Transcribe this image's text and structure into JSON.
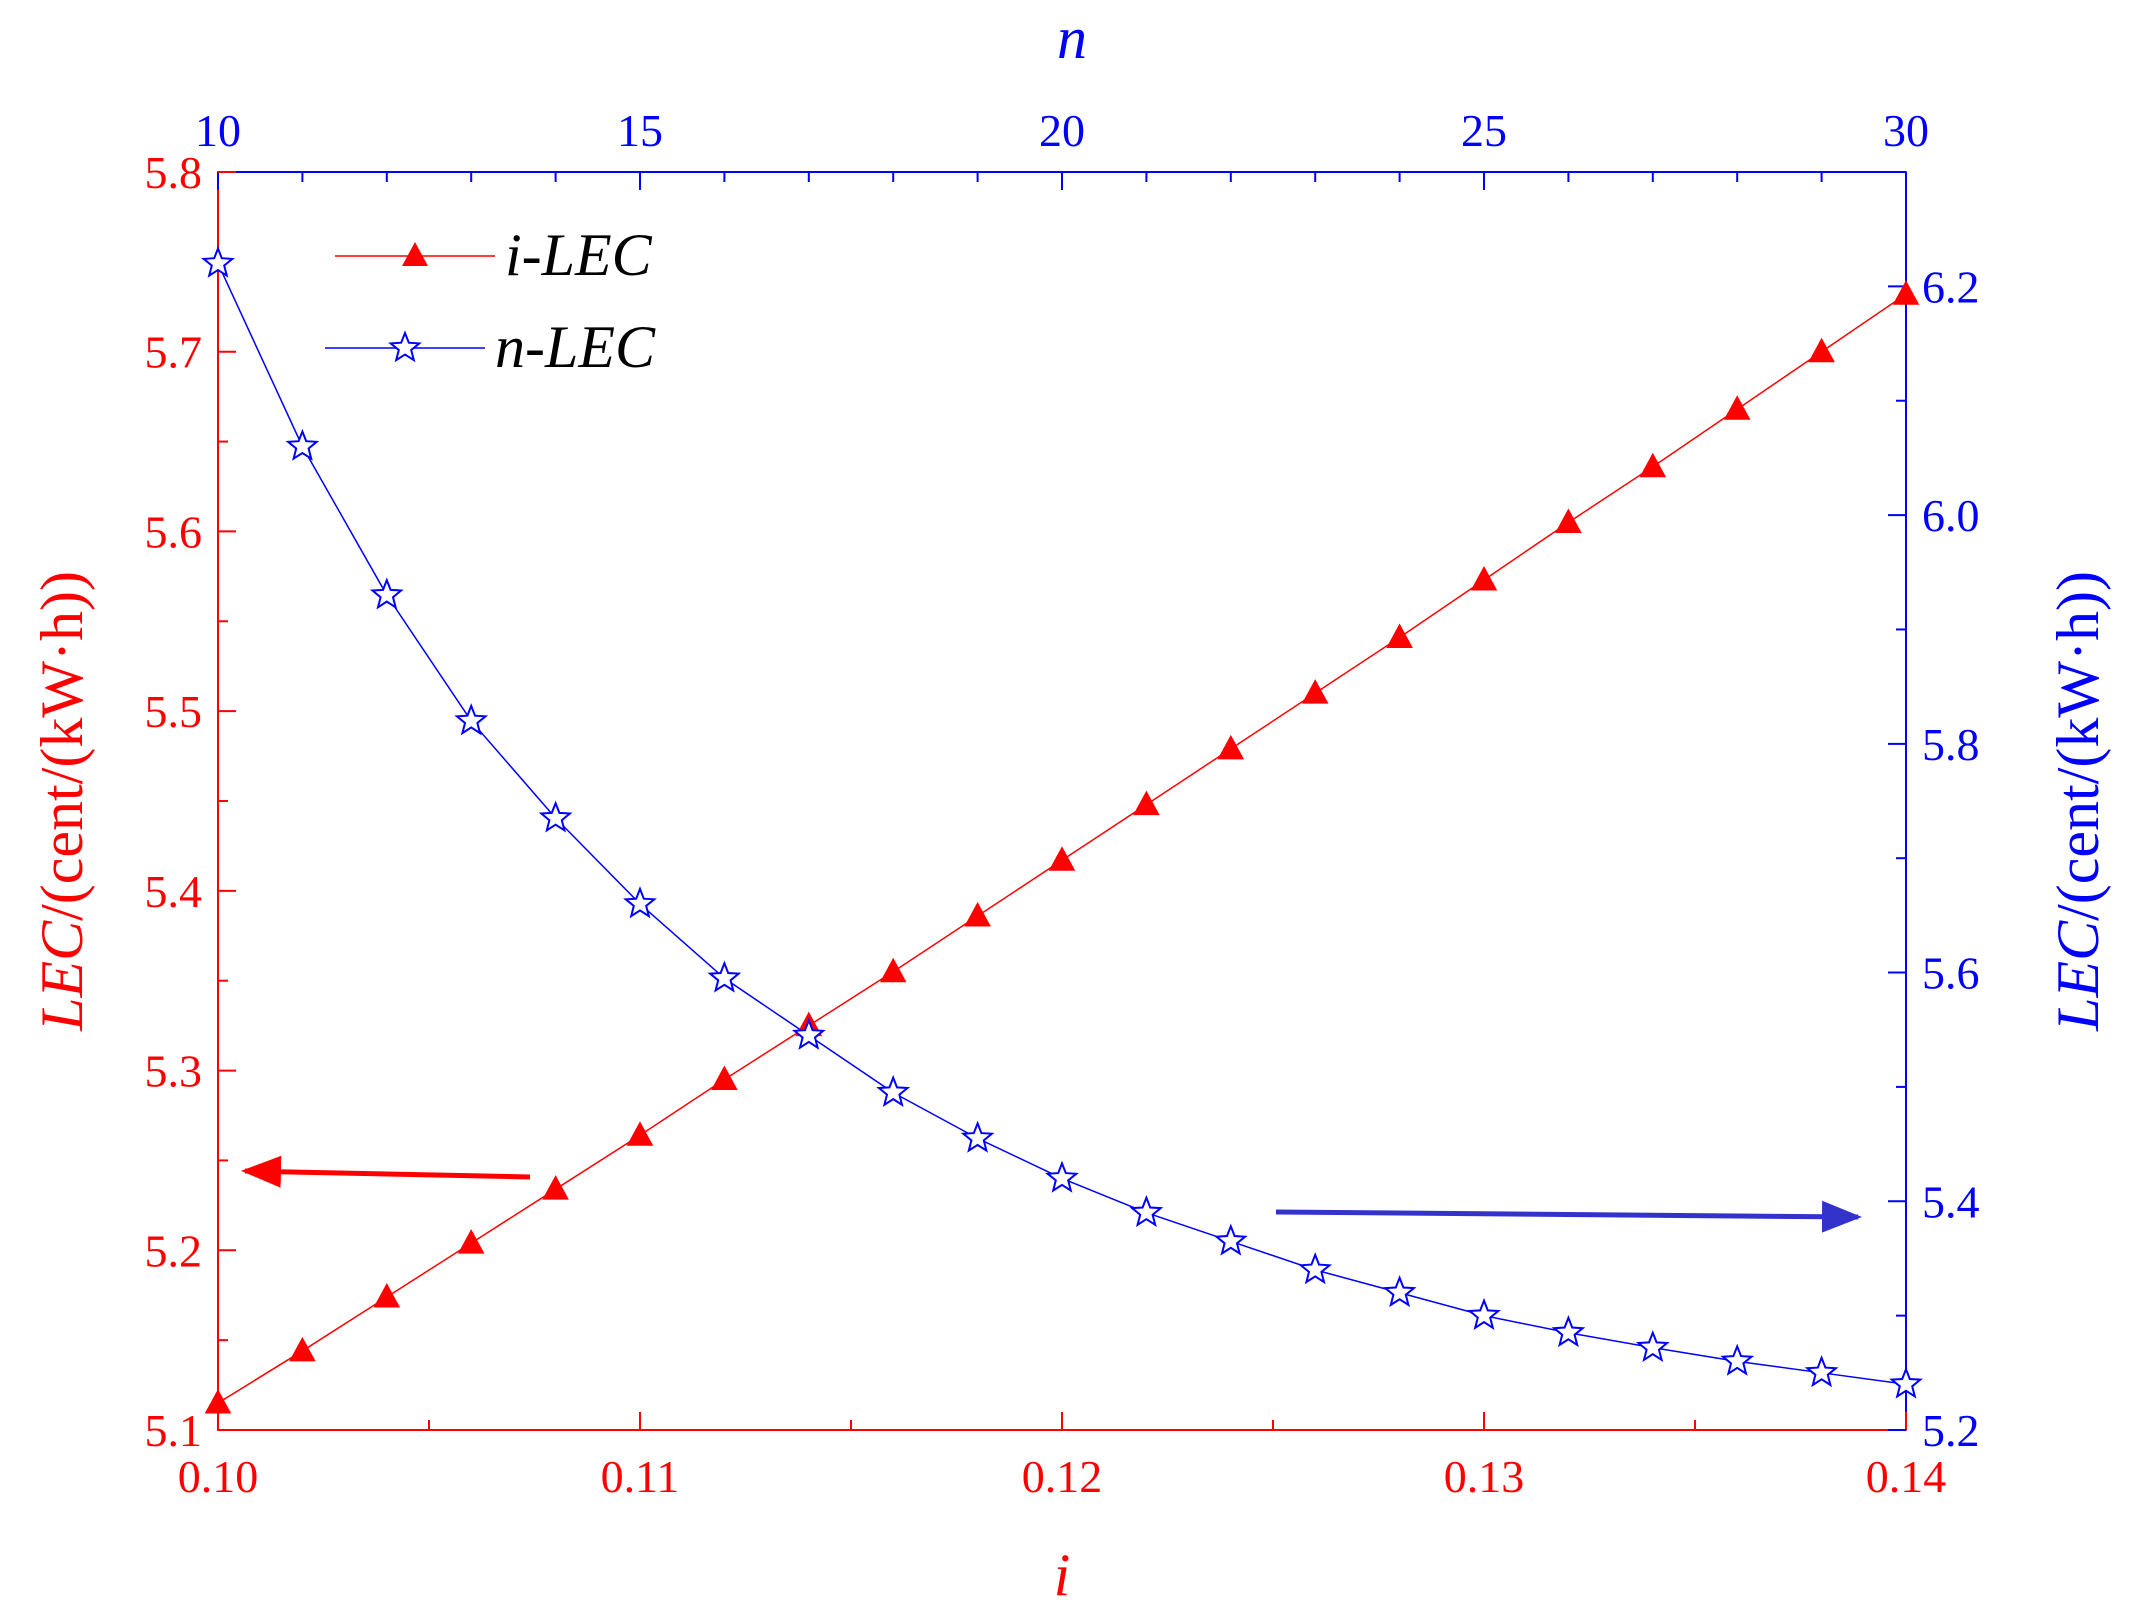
{
  "chart_data": {
    "type": "line",
    "x_bottom": {
      "label": "i",
      "range": [
        0.1,
        0.14
      ],
      "ticks": [
        "0.10",
        "0.11",
        "0.12",
        "0.13",
        "0.14"
      ],
      "color": "#ff0000"
    },
    "x_top": {
      "label": "n",
      "range": [
        10,
        30
      ],
      "ticks": [
        "10",
        "15",
        "20",
        "25",
        "30"
      ],
      "color": "#0000ff"
    },
    "y_left": {
      "label_italic": "LEC",
      "label_rest": "/(cent/(kW·h))",
      "range": [
        5.1,
        5.8
      ],
      "ticks": [
        "5.1",
        "5.2",
        "5.3",
        "5.4",
        "5.5",
        "5.6",
        "5.7",
        "5.8"
      ],
      "color": "#ff0000"
    },
    "y_right": {
      "label_italic": "LEC",
      "label_rest": "/(cent/(kW·h))",
      "range": [
        5.2,
        6.3
      ],
      "ticks": [
        "5.2",
        "5.4",
        "5.6",
        "5.8",
        "6.0",
        "6.2"
      ],
      "color": "#0000ff"
    },
    "legend_position": "top-left",
    "series": [
      {
        "name": "i-LEC",
        "axis": "bottom-left",
        "color": "#ff0000",
        "marker": "filled-triangle",
        "x": [
          0.1,
          0.102,
          0.104,
          0.106,
          0.108,
          0.11,
          0.112,
          0.114,
          0.116,
          0.118,
          0.12,
          0.122,
          0.124,
          0.126,
          0.128,
          0.13,
          0.132,
          0.134,
          0.136,
          0.138,
          0.14
        ],
        "y": [
          5.115,
          5.144,
          5.174,
          5.204,
          5.234,
          5.264,
          5.295,
          5.325,
          5.355,
          5.386,
          5.417,
          5.448,
          5.479,
          5.51,
          5.541,
          5.573,
          5.605,
          5.636,
          5.668,
          5.7,
          5.732
        ]
      },
      {
        "name": "n-LEC",
        "axis": "top-right",
        "color": "#0000ff",
        "marker": "open-star",
        "x": [
          10,
          11,
          12,
          13,
          14,
          15,
          16,
          17,
          18,
          19,
          20,
          21,
          22,
          23,
          24,
          25,
          26,
          27,
          28,
          29,
          30
        ],
        "y": [
          6.22,
          6.06,
          5.93,
          5.82,
          5.735,
          5.66,
          5.595,
          5.545,
          5.495,
          5.455,
          5.42,
          5.39,
          5.365,
          5.34,
          5.32,
          5.3,
          5.285,
          5.272,
          5.26,
          5.25,
          5.24
        ]
      }
    ],
    "annotations": [
      {
        "type": "arrow",
        "points_to": "left-axis",
        "color": "#ff0000"
      },
      {
        "type": "arrow",
        "points_to": "right-axis",
        "color": "#3333cc"
      }
    ]
  }
}
